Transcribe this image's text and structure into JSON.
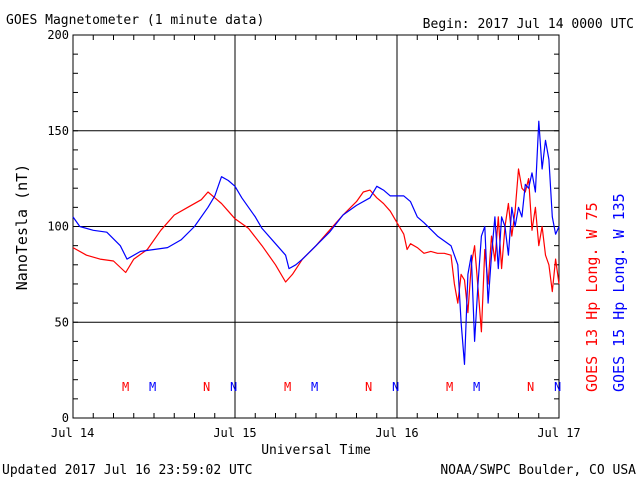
{
  "header": {
    "title": "GOES Magnetometer (1 minute data)",
    "begin": "Begin:  2017 Jul 14 0000 UTC"
  },
  "footer": {
    "updated": "Updated 2017 Jul 16 23:59:02 UTC",
    "source": "NOAA/SWPC Boulder, CO USA"
  },
  "chart_data": {
    "type": "line",
    "title": "GOES Magnetometer (1 minute data)",
    "xlabel": "Universal Time",
    "ylabel": "NanoTesla (nT)",
    "xlim": [
      0,
      72
    ],
    "x_units": "hours since 2017 Jul 14 0000 UTC",
    "ylim": [
      0,
      200
    ],
    "y_ticks": [
      0,
      50,
      100,
      150,
      200
    ],
    "x_ticks": [
      {
        "x": 0,
        "label": "Jul 14"
      },
      {
        "x": 24,
        "label": "Jul 15"
      },
      {
        "x": 48,
        "label": "Jul 16"
      },
      {
        "x": 72,
        "label": "Jul 17"
      }
    ],
    "grid": true,
    "markers": [
      {
        "x": 7.8,
        "text": "M",
        "series": 0
      },
      {
        "x": 11.8,
        "text": "M",
        "series": 1
      },
      {
        "x": 19.8,
        "text": "N",
        "series": 0
      },
      {
        "x": 23.8,
        "text": "N",
        "series": 1
      },
      {
        "x": 31.8,
        "text": "M",
        "series": 0
      },
      {
        "x": 35.8,
        "text": "M",
        "series": 1
      },
      {
        "x": 43.8,
        "text": "N",
        "series": 0
      },
      {
        "x": 47.8,
        "text": "N",
        "series": 1
      },
      {
        "x": 55.8,
        "text": "M",
        "series": 0
      },
      {
        "x": 59.8,
        "text": "M",
        "series": 1
      },
      {
        "x": 67.8,
        "text": "N",
        "series": 0
      },
      {
        "x": 71.8,
        "text": "N",
        "series": 1
      }
    ],
    "series": [
      {
        "name": "GOES 13 Hp  Long. W 75",
        "color": "#ff0000",
        "x": [
          0,
          2,
          4,
          6,
          7.8,
          9,
          11,
          13,
          15,
          17,
          19,
          20,
          21,
          22,
          23,
          24,
          26,
          28,
          30,
          31.5,
          32.5,
          34,
          36,
          38,
          40,
          42,
          43,
          44,
          45,
          46,
          47,
          48,
          49,
          49.5,
          50,
          51,
          52,
          53,
          54,
          55,
          56,
          56.5,
          57,
          57.5,
          58,
          58.5,
          59,
          59.5,
          60,
          60.5,
          61,
          61.5,
          62,
          62.5,
          63,
          63.5,
          64,
          64.5,
          65,
          65.5,
          66,
          66.5,
          67,
          67.5,
          68,
          68.5,
          69,
          69.5,
          70,
          70.5,
          71,
          71.5,
          72
        ],
        "y": [
          89,
          85,
          83,
          82,
          76,
          83,
          88,
          98,
          106,
          110,
          114,
          118,
          115,
          112,
          108,
          104,
          99,
          90,
          80,
          71,
          75,
          83,
          90,
          98,
          106,
          113,
          118,
          119,
          115,
          112,
          108,
          102,
          96,
          88,
          91,
          89,
          86,
          87,
          86,
          86,
          85,
          70,
          60,
          75,
          72,
          55,
          80,
          90,
          68,
          45,
          88,
          70,
          95,
          82,
          105,
          78,
          100,
          112,
          95,
          108,
          130,
          120,
          118,
          125,
          98,
          110,
          90,
          100,
          85,
          80,
          66,
          83,
          70
        ]
      },
      {
        "name": "GOES 15 Hp  Long. W 135",
        "color": "#0000ff",
        "x": [
          0,
          1,
          3,
          5,
          7,
          8,
          10,
          12,
          14,
          16,
          18,
          20,
          21,
          22,
          23,
          24,
          25,
          26,
          27,
          28,
          30,
          31.5,
          32,
          33,
          34,
          36,
          38,
          40,
          42,
          44,
          45,
          46,
          47,
          48,
          49,
          50,
          51,
          52,
          54,
          56,
          57,
          57.5,
          58,
          58.5,
          59,
          59.5,
          60,
          60.5,
          61,
          61.5,
          62,
          62.5,
          63,
          63.5,
          64,
          64.5,
          65,
          65.5,
          66,
          66.5,
          67,
          67.5,
          68,
          68.5,
          69,
          69.5,
          70,
          70.5,
          71,
          71.5,
          72
        ],
        "y": [
          105,
          100,
          98,
          97,
          90,
          83,
          87,
          88,
          89,
          93,
          100,
          110,
          116,
          126,
          124,
          121,
          115,
          110,
          105,
          99,
          91,
          85,
          78,
          80,
          83,
          90,
          97,
          106,
          111,
          115,
          121,
          119,
          116,
          116,
          116,
          113,
          105,
          102,
          95,
          90,
          80,
          50,
          28,
          75,
          85,
          40,
          70,
          95,
          100,
          60,
          85,
          105,
          78,
          105,
          100,
          85,
          110,
          100,
          110,
          105,
          122,
          120,
          128,
          118,
          155,
          130,
          145,
          135,
          105,
          96,
          100
        ]
      }
    ]
  }
}
